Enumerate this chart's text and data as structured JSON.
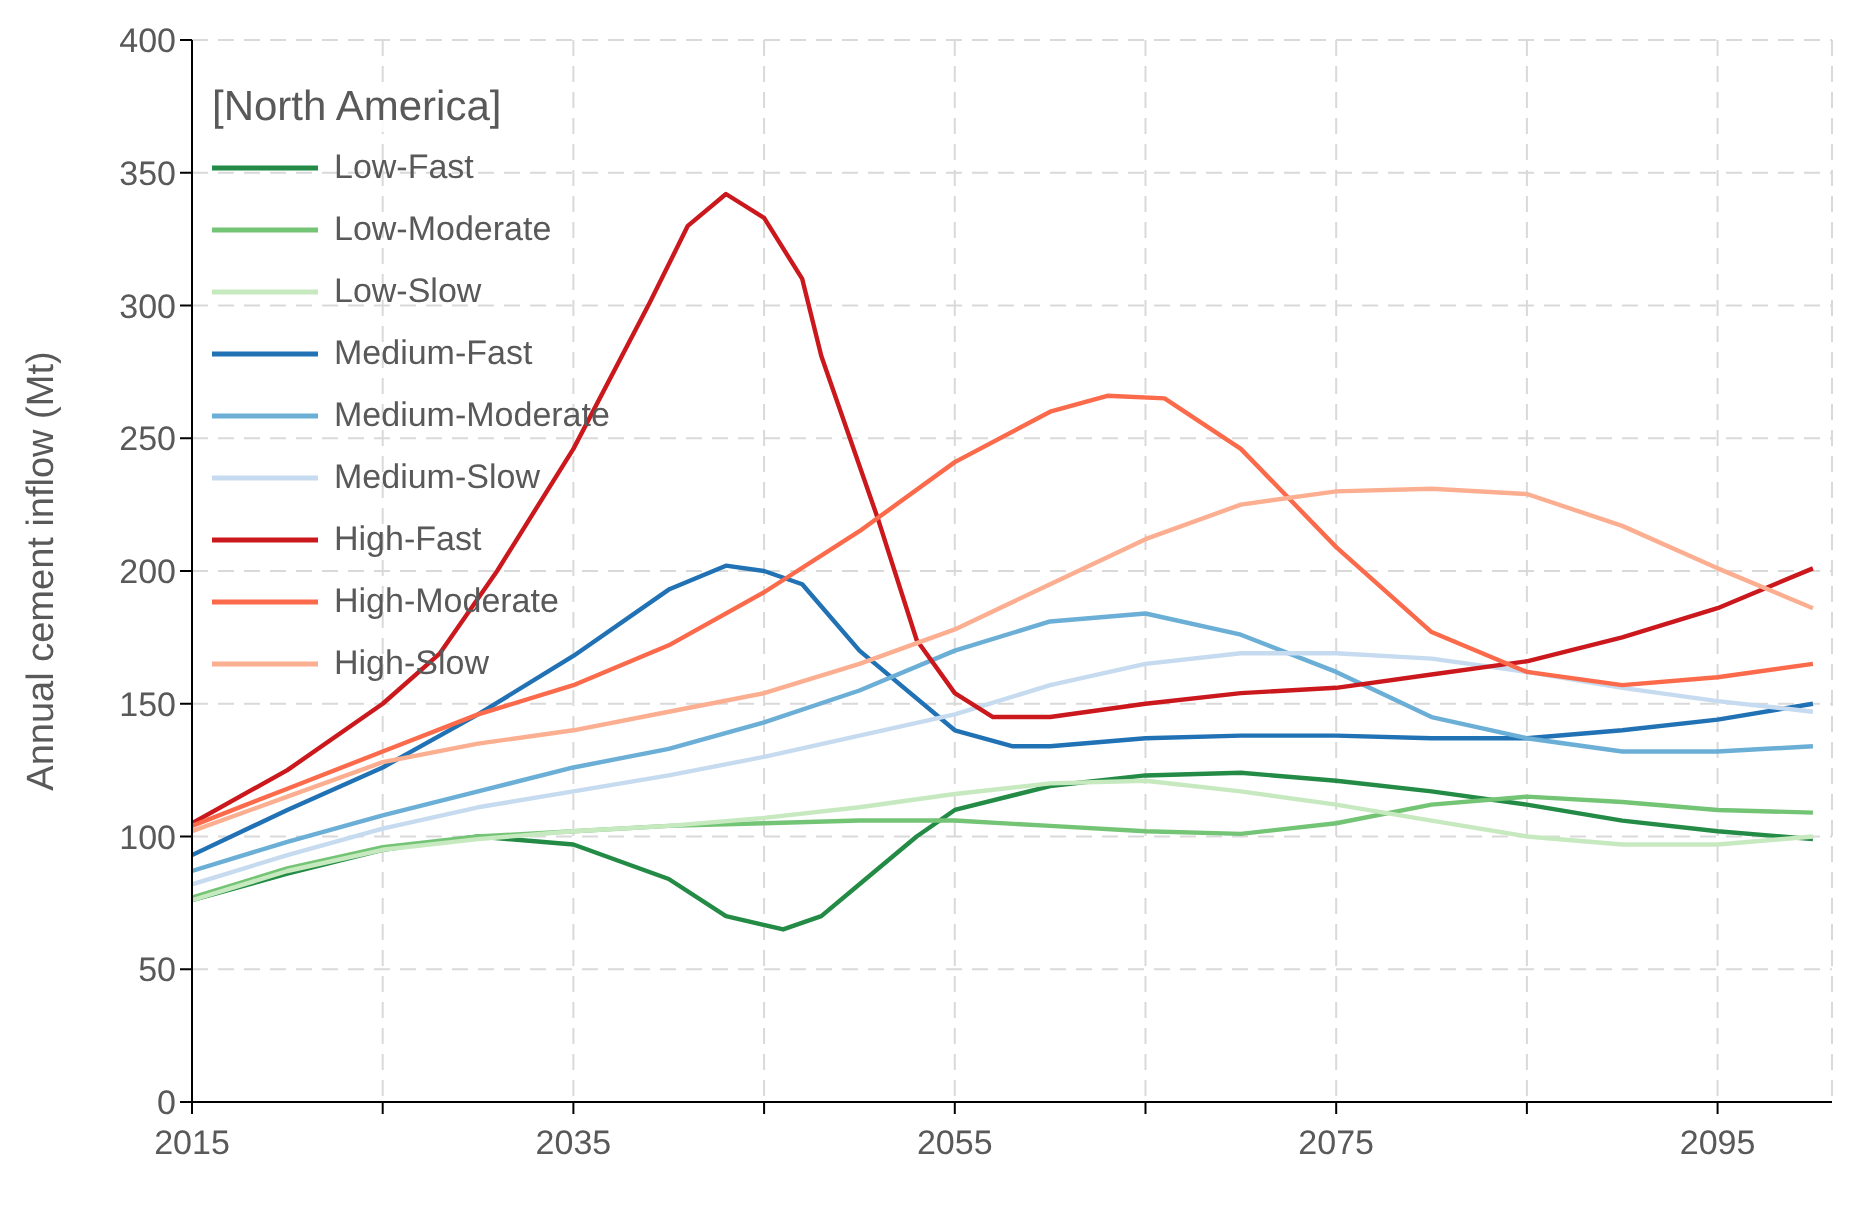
{
  "chart_data": {
    "type": "line",
    "ylabel": "Annual cement inflow (Mt)",
    "legend_title": "[North America]",
    "legend": "top left",
    "grid": true,
    "marker": "none",
    "line_style": "solid",
    "xlim": [
      2015,
      2101
    ],
    "xticks": [
      2015,
      {
        "value": 2025,
        "label": null
      },
      2035,
      {
        "value": 2045,
        "label": null
      },
      2055,
      {
        "value": 2065,
        "label": null
      },
      2075,
      {
        "value": 2085,
        "label": null
      },
      2095
    ],
    "ylim": [
      0,
      400
    ],
    "yticks": [
      0,
      50,
      100,
      150,
      200,
      250,
      300,
      350,
      400
    ],
    "series": [
      {
        "name": "Low-Fast",
        "color": "#238b45",
        "x": [
          2015,
          2020,
          2025,
          2030,
          2035,
          2040,
          2043,
          2046,
          2048,
          2050,
          2053,
          2055,
          2060,
          2065,
          2070,
          2075,
          2080,
          2085,
          2090,
          2095,
          2100
        ],
        "values": [
          76,
          86,
          95,
          100,
          97,
          84,
          70,
          65,
          70,
          82,
          100,
          110,
          119,
          123,
          124,
          121,
          117,
          112,
          106,
          102,
          99
        ]
      },
      {
        "name": "Low-Moderate",
        "color": "#74c476",
        "x": [
          2015,
          2020,
          2025,
          2030,
          2035,
          2040,
          2045,
          2050,
          2055,
          2060,
          2065,
          2070,
          2075,
          2080,
          2085,
          2090,
          2095,
          2100
        ],
        "values": [
          77,
          88,
          96,
          100,
          102,
          104,
          105,
          106,
          106,
          104,
          102,
          101,
          105,
          112,
          115,
          113,
          110,
          109
        ]
      },
      {
        "name": "Low-Slow",
        "color": "#c7e9c0",
        "x": [
          2015,
          2020,
          2025,
          2030,
          2035,
          2040,
          2045,
          2050,
          2055,
          2060,
          2065,
          2070,
          2075,
          2080,
          2085,
          2090,
          2095,
          2100
        ],
        "values": [
          76,
          87,
          95,
          99,
          102,
          104,
          107,
          111,
          116,
          120,
          121,
          117,
          112,
          106,
          100,
          97,
          97,
          100
        ]
      },
      {
        "name": "Medium-Fast",
        "color": "#2171b5",
        "x": [
          2015,
          2020,
          2025,
          2030,
          2035,
          2040,
          2043,
          2045,
          2047,
          2050,
          2055,
          2058,
          2060,
          2065,
          2070,
          2075,
          2080,
          2085,
          2090,
          2095,
          2100
        ],
        "values": [
          93,
          110,
          126,
          146,
          168,
          193,
          202,
          200,
          195,
          170,
          140,
          134,
          134,
          137,
          138,
          138,
          137,
          137,
          140,
          144,
          150
        ]
      },
      {
        "name": "Medium-Moderate",
        "color": "#6baed6",
        "x": [
          2015,
          2020,
          2025,
          2030,
          2035,
          2040,
          2045,
          2050,
          2055,
          2060,
          2065,
          2070,
          2075,
          2080,
          2085,
          2090,
          2095,
          2100
        ],
        "values": [
          87,
          98,
          108,
          117,
          126,
          133,
          143,
          155,
          170,
          181,
          184,
          176,
          162,
          145,
          137,
          132,
          132,
          134
        ]
      },
      {
        "name": "Medium-Slow",
        "color": "#c6dbef",
        "x": [
          2015,
          2020,
          2025,
          2030,
          2035,
          2040,
          2045,
          2050,
          2055,
          2060,
          2065,
          2070,
          2075,
          2080,
          2085,
          2090,
          2095,
          2100
        ],
        "values": [
          82,
          93,
          103,
          111,
          117,
          123,
          130,
          138,
          146,
          157,
          165,
          169,
          169,
          167,
          162,
          156,
          151,
          147
        ]
      },
      {
        "name": "High-Fast",
        "color": "#cb181d",
        "x": [
          2015,
          2020,
          2025,
          2028,
          2031,
          2035,
          2039,
          2041,
          2043,
          2045,
          2047,
          2048,
          2051,
          2053,
          2055,
          2057,
          2060,
          2065,
          2070,
          2075,
          2080,
          2085,
          2090,
          2095,
          2100
        ],
        "values": [
          105,
          125,
          150,
          169,
          200,
          246,
          301,
          330,
          342,
          333,
          310,
          281,
          219,
          174,
          154,
          145,
          145,
          150,
          154,
          156,
          161,
          166,
          175,
          186,
          201
        ]
      },
      {
        "name": "High-Moderate",
        "color": "#fb6a4a",
        "x": [
          2015,
          2020,
          2025,
          2030,
          2035,
          2040,
          2045,
          2050,
          2055,
          2060,
          2063,
          2066,
          2070,
          2075,
          2080,
          2085,
          2090,
          2095,
          2100
        ],
        "values": [
          104,
          118,
          132,
          146,
          157,
          172,
          192,
          215,
          241,
          260,
          266,
          265,
          246,
          209,
          177,
          162,
          157,
          160,
          165
        ]
      },
      {
        "name": "High-Slow",
        "color": "#fcae91",
        "x": [
          2015,
          2020,
          2025,
          2030,
          2035,
          2040,
          2045,
          2050,
          2055,
          2060,
          2065,
          2070,
          2075,
          2080,
          2085,
          2090,
          2095,
          2100
        ],
        "values": [
          102,
          115,
          128,
          135,
          140,
          147,
          154,
          165,
          178,
          195,
          212,
          225,
          230,
          231,
          229,
          217,
          201,
          186
        ]
      }
    ]
  }
}
